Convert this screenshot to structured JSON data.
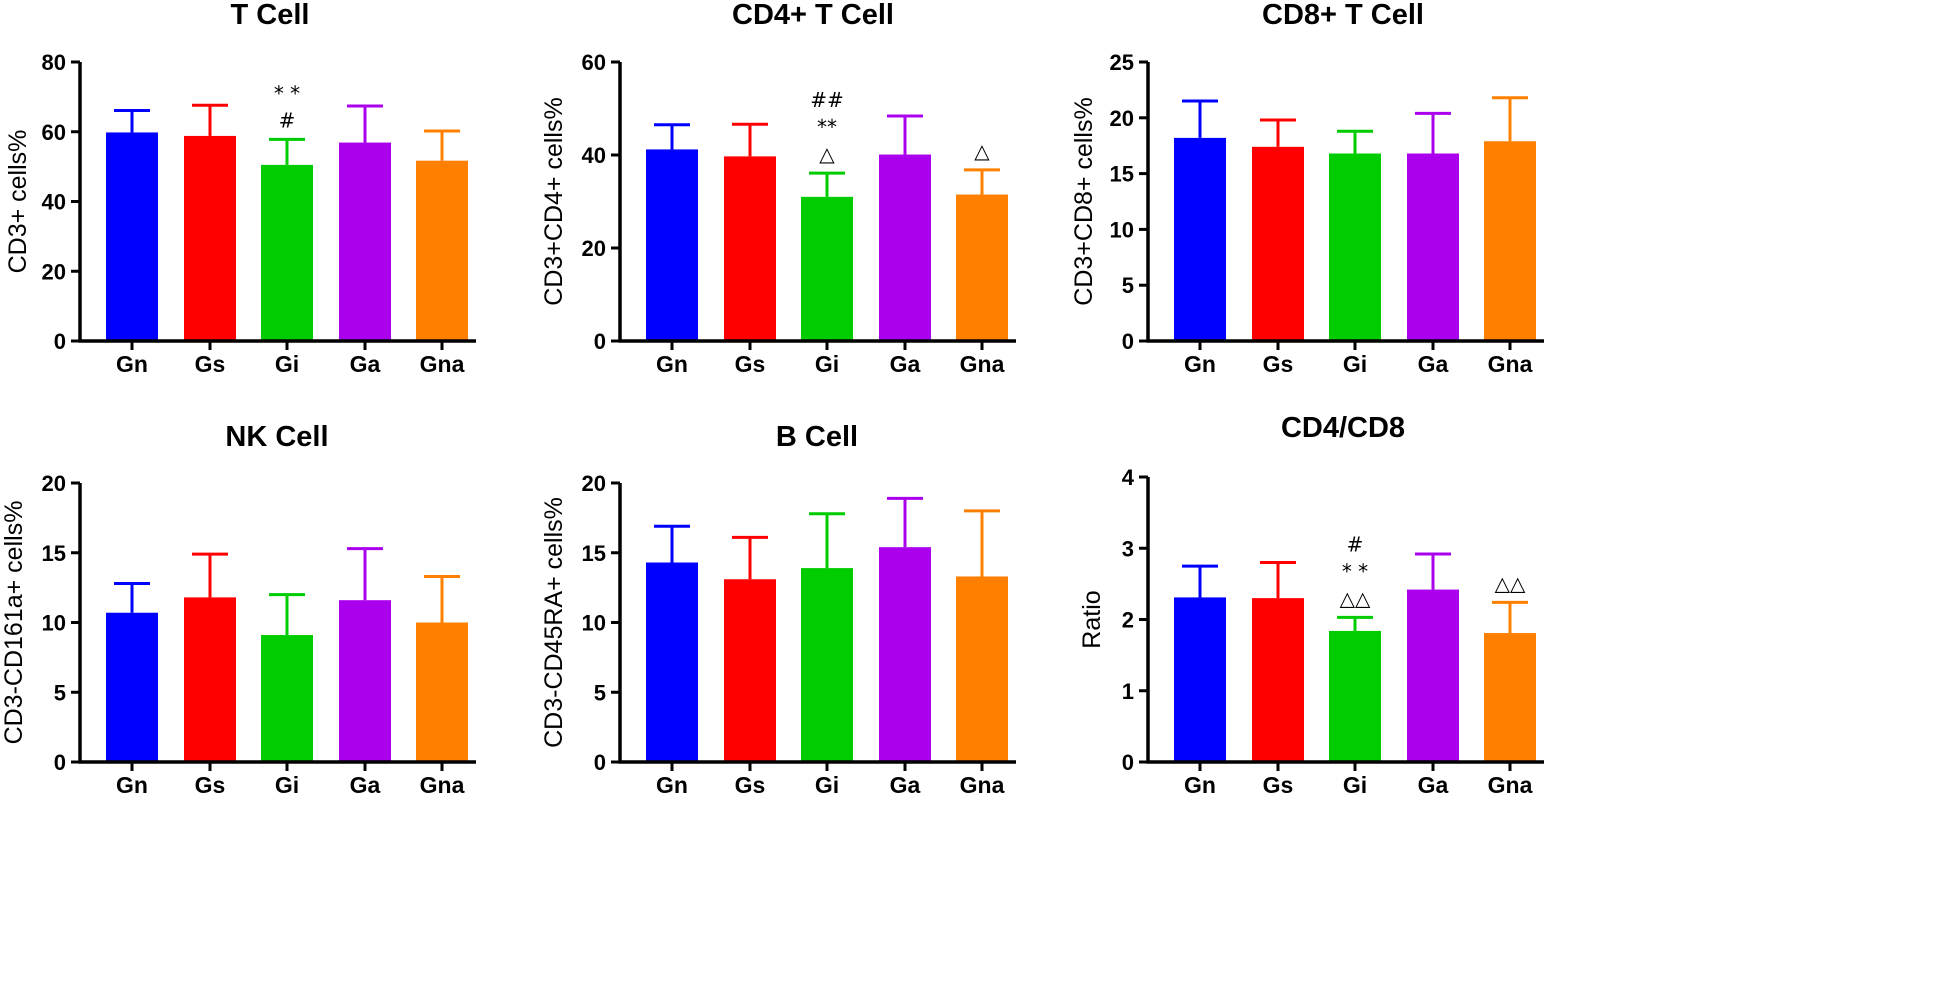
{
  "chart_data": [
    {
      "type": "bar",
      "title": "T Cell",
      "ylabel": "CD3+ cells%",
      "xlabel": "",
      "ylim": [
        0,
        80
      ],
      "yticks": [
        0,
        20,
        40,
        60,
        80
      ],
      "categories": [
        "Gn",
        "Gs",
        "Gi",
        "Ga",
        "Gna"
      ],
      "values": [
        59.8,
        58.8,
        50.5,
        56.9,
        51.7
      ],
      "errors": [
        6.3,
        8.8,
        7.3,
        10.5,
        8.5
      ],
      "annotations": [
        [
          "",
          "",
          "* *\n#",
          "",
          ""
        ]
      ]
    },
    {
      "type": "bar",
      "title": "CD4+ T Cell",
      "ylabel": "CD3+CD4+ cells%",
      "xlabel": "",
      "ylim": [
        0,
        60
      ],
      "yticks": [
        0,
        20,
        40,
        60
      ],
      "categories": [
        "Gn",
        "Gs",
        "Gi",
        "Ga",
        "Gna"
      ],
      "values": [
        41.2,
        39.7,
        31.0,
        40.1,
        31.5
      ],
      "errors": [
        5.3,
        6.9,
        5.1,
        8.3,
        5.3
      ],
      "annotations": [
        [
          "",
          "",
          "##\n**\n△",
          "",
          "△"
        ]
      ]
    },
    {
      "type": "bar",
      "title": "CD8+ T Cell",
      "ylabel": "CD3+CD8+ cells%",
      "xlabel": "",
      "ylim": [
        0,
        25
      ],
      "yticks": [
        0,
        5,
        10,
        15,
        20,
        25
      ],
      "categories": [
        "Gn",
        "Gs",
        "Gi",
        "Ga",
        "Gna"
      ],
      "values": [
        18.2,
        17.4,
        16.8,
        16.8,
        17.9
      ],
      "errors": [
        3.3,
        2.4,
        2.0,
        3.6,
        3.9
      ],
      "annotations": [
        [
          "",
          "",
          "",
          "",
          ""
        ]
      ]
    },
    {
      "type": "bar",
      "title": "NK Cell",
      "ylabel": "CD3-CD161a+  cells%",
      "xlabel": "",
      "ylim": [
        0,
        20
      ],
      "yticks": [
        0,
        5,
        10,
        15,
        20
      ],
      "categories": [
        "Gn",
        "Gs",
        "Gi",
        "Ga",
        "Gna"
      ],
      "values": [
        10.7,
        11.8,
        9.1,
        11.6,
        10.0
      ],
      "errors": [
        2.1,
        3.1,
        2.9,
        3.7,
        3.3
      ],
      "annotations": [
        [
          "",
          "",
          "",
          "",
          ""
        ]
      ]
    },
    {
      "type": "bar",
      "title": "B  Cell",
      "ylabel": "CD3-CD45RA+  cells%",
      "xlabel": "",
      "ylim": [
        0,
        20
      ],
      "yticks": [
        0,
        5,
        10,
        15,
        20
      ],
      "categories": [
        "Gn",
        "Gs",
        "Gi",
        "Ga",
        "Gna"
      ],
      "values": [
        14.3,
        13.1,
        13.9,
        15.4,
        13.3
      ],
      "errors": [
        2.6,
        3.0,
        3.9,
        3.5,
        4.7
      ],
      "annotations": [
        [
          "",
          "",
          "",
          "",
          ""
        ]
      ]
    },
    {
      "type": "bar",
      "title": "CD4/CD8",
      "ylabel": "Ratio",
      "xlabel": "",
      "ylim": [
        0,
        4
      ],
      "yticks": [
        0,
        1,
        2,
        3,
        4
      ],
      "categories": [
        "Gn",
        "Gs",
        "Gi",
        "Ga",
        "Gna"
      ],
      "values": [
        2.31,
        2.3,
        1.84,
        2.42,
        1.81
      ],
      "errors": [
        0.44,
        0.5,
        0.19,
        0.5,
        0.43
      ],
      "annotations": [
        [
          "",
          "",
          "#\n* *\n△△",
          "",
          "△△"
        ]
      ]
    }
  ],
  "colors": {
    "bars": [
      "#0000ff",
      "#ff0000",
      "#00cc00",
      "#aa00ee",
      "#ff8000"
    ],
    "axis": "#000000"
  }
}
